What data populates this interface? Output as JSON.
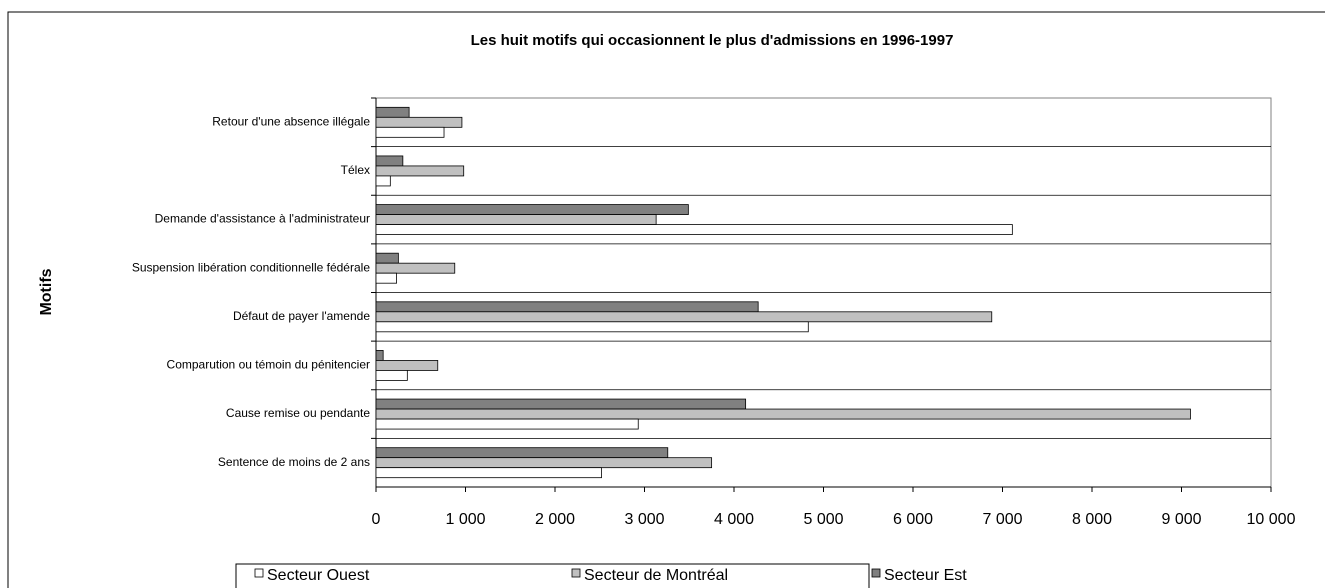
{
  "chart_data": {
    "type": "hbar",
    "title": "Les huit motifs qui occasionnent le plus d'admissions en 1996-1997",
    "y_label": "Motifs",
    "categories": [
      "Retour d'une absence illégale",
      "Télex",
      "Demande d'assistance à l'administrateur",
      "Suspension libération conditionnelle fédérale",
      "Défaut de payer l'amende",
      "Comparution ou témoin du pénitencier",
      "Cause remise ou pendante",
      "Sentence de moins de 2 ans"
    ],
    "series": [
      {
        "name": "Secteur Ouest",
        "color": "#ffffff",
        "values": [
          760,
          160,
          7110,
          230,
          4830,
          350,
          2930,
          2520
        ]
      },
      {
        "name": "Secteur de Montréal",
        "color": "#c0c0c0",
        "values": [
          960,
          980,
          3130,
          880,
          6880,
          690,
          9100,
          3750
        ]
      },
      {
        "name": "Secteur Est",
        "color": "#808080",
        "values": [
          370,
          300,
          3490,
          250,
          4270,
          80,
          4130,
          3260
        ]
      }
    ],
    "xlim": [
      0,
      10000
    ],
    "xticks": [
      0,
      {
        "value": 1000,
        "label": "1 000"
      },
      {
        "value": 2000,
        "label": "2 000"
      },
      {
        "value": 3000,
        "label": "3 000"
      },
      {
        "value": 4000,
        "label": "4 000"
      },
      {
        "value": 5000,
        "label": "5 000"
      },
      {
        "value": 6000,
        "label": "6 000"
      },
      {
        "value": 7000,
        "label": "7 000"
      },
      {
        "value": 8000,
        "label": "8 000"
      },
      {
        "value": 9000,
        "label": "9 000"
      },
      {
        "value": 10000,
        "label": "10 000"
      }
    ],
    "legend": "bottom"
  }
}
